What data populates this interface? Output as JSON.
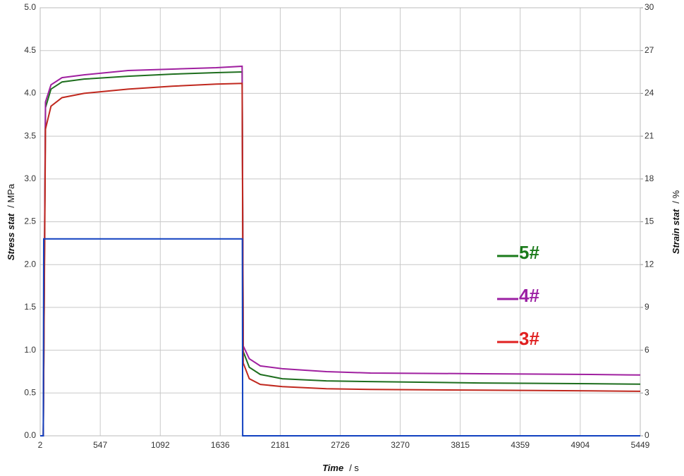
{
  "chart_data": {
    "type": "line",
    "x_label": "Time",
    "x_unit": "/  s",
    "y_label": "Stress stat",
    "y_unit": "/  MPa",
    "y2_label": "Strain stat",
    "y2_unit": "/  %",
    "xlim": [
      2,
      5449
    ],
    "xticks": [
      2,
      547,
      1092,
      1636,
      2181,
      2726,
      3270,
      3815,
      4359,
      4904,
      5449
    ],
    "ylim": [
      0,
      5
    ],
    "yticks": [
      {
        "value": 0,
        "label": "0.0"
      },
      {
        "value": 0.5,
        "label": "0.5"
      },
      {
        "value": 1,
        "label": "1.0"
      },
      {
        "value": 1.5,
        "label": "1.5"
      },
      {
        "value": 2,
        "label": "2.0"
      },
      {
        "value": 2.5,
        "label": "2.5"
      },
      {
        "value": 3,
        "label": "3.0"
      },
      {
        "value": 3.5,
        "label": "3.5"
      },
      {
        "value": 4,
        "label": "4.0"
      },
      {
        "value": 4.5,
        "label": "4.5"
      },
      {
        "value": 5,
        "label": "5.0"
      }
    ],
    "y2lim": [
      0,
      30
    ],
    "y2ticks": [
      0,
      3,
      6,
      9,
      12,
      15,
      18,
      21,
      24,
      27,
      30
    ],
    "grid": true,
    "legend": "right",
    "series": [
      {
        "name": "5#",
        "color": "#1e6e1e",
        "label_color": "#1a7a1a",
        "axis": "y2",
        "x": [
          2,
          30,
          50,
          100,
          200,
          400,
          800,
          1200,
          1600,
          1835,
          1845,
          1900,
          2000,
          2200,
          2600,
          3000,
          4000,
          5000,
          5449
        ],
        "values": [
          0,
          0,
          23.0,
          24.3,
          24.8,
          25.0,
          25.2,
          25.35,
          25.45,
          25.5,
          5.9,
          4.8,
          4.3,
          4.0,
          3.85,
          3.8,
          3.7,
          3.65,
          3.62
        ]
      },
      {
        "name": "4#",
        "color": "#a020a0",
        "label_color": "#9b1fa3",
        "axis": "y2",
        "x": [
          2,
          30,
          50,
          100,
          200,
          400,
          800,
          1200,
          1600,
          1835,
          1845,
          1900,
          2000,
          2200,
          2600,
          3000,
          4000,
          5000,
          5449
        ],
        "values": [
          0,
          0,
          23.4,
          24.6,
          25.1,
          25.3,
          25.6,
          25.7,
          25.8,
          25.9,
          6.3,
          5.4,
          4.9,
          4.7,
          4.5,
          4.4,
          4.35,
          4.3,
          4.26
        ]
      },
      {
        "name": "3#",
        "color": "#c0281e",
        "label_color": "#e02020",
        "axis": "y2",
        "x": [
          2,
          30,
          50,
          100,
          200,
          400,
          800,
          1200,
          1600,
          1835,
          1845,
          1900,
          2000,
          2200,
          2600,
          3000,
          4000,
          5000,
          5449
        ],
        "values": [
          0,
          0,
          21.5,
          23.1,
          23.7,
          24.0,
          24.3,
          24.5,
          24.65,
          24.7,
          5.1,
          4.0,
          3.6,
          3.45,
          3.3,
          3.25,
          3.2,
          3.15,
          3.12
        ]
      },
      {
        "color": "#1040c0",
        "axis": "y",
        "x": [
          2,
          30,
          34,
          1837,
          1840,
          5449
        ],
        "values": [
          0,
          0,
          2.3,
          2.3,
          0,
          0
        ]
      }
    ]
  }
}
